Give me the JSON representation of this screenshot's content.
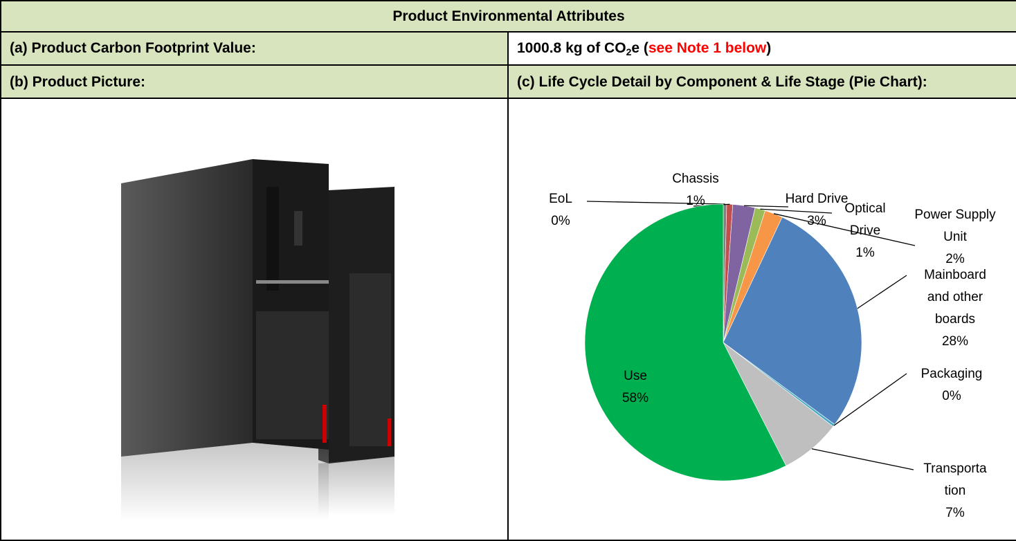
{
  "table": {
    "title": "Product Environmental Attributes",
    "row_a": {
      "label": "(a) Product Carbon Footprint Value:",
      "value": {
        "pre": "1000.8 kg of CO",
        "sub": "2",
        "post": "e (",
        "note": "see Note 1 below",
        "close": ")"
      }
    },
    "row_b": {
      "left": "(b) Product Picture:",
      "right": "(c) Life Cycle Detail by Component & Life Stage (Pie Chart):"
    }
  },
  "chart_data": {
    "type": "pie",
    "categories": [
      "EoL",
      "Chassis",
      "Hard Drive",
      "Optical Drive",
      "Power Supply Unit",
      "Mainboard and other boards",
      "Packaging",
      "Transportation",
      "Use"
    ],
    "values": [
      0.4,
      0.7,
      2.6,
      1.2,
      2.1,
      28.1,
      0.3,
      7.1,
      57.5
    ],
    "value_labels": [
      "0%",
      "1%",
      "3%",
      "1%",
      "2%",
      "28%",
      "0%",
      "7%",
      "58%"
    ],
    "colors": [
      "#7f7f7f",
      "#c0504d",
      "#8064a2",
      "#9bbb59",
      "#f79646",
      "#4f81bd",
      "#4bacc6",
      "#bfbfbf",
      "#00b050"
    ]
  }
}
